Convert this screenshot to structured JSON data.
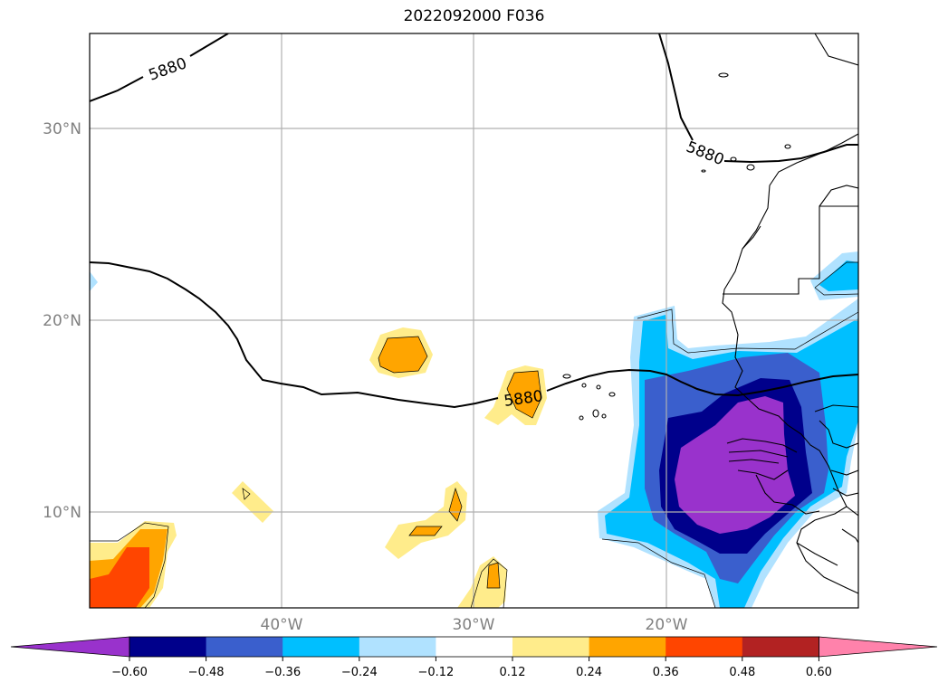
{
  "title": "2022092000 F036",
  "map": {
    "lat_labels": [
      "30°N",
      "20°N",
      "10°N"
    ],
    "lon_labels": [
      "40°W",
      "30°W",
      "20°W"
    ],
    "contour_value": "5880",
    "contour_labels": [
      "5880",
      "5880",
      "5880"
    ]
  },
  "colorbar": {
    "ticks": [
      "−0.60",
      "−0.48",
      "−0.36",
      "−0.24",
      "−0.12",
      "0.12",
      "0.24",
      "0.36",
      "0.48",
      "0.60"
    ],
    "colors": [
      "#9932cc",
      "#00008b",
      "#3a5fcd",
      "#00bfff",
      "#b0e2ff",
      "#ffffff",
      "#ffec8b",
      "#ffa500",
      "#ff4500",
      "#b22222",
      "#ff82ab"
    ]
  },
  "palette": {
    "purple": "#9932cc",
    "navy": "#00008b",
    "blue": "#3a5fcd",
    "cyan": "#00bfff",
    "lightblue": "#b0e2ff",
    "yellow": "#ffec8b",
    "orange": "#ffa500",
    "redorange": "#ff4500",
    "darkred": "#b22222",
    "pink": "#ff82ab"
  }
}
